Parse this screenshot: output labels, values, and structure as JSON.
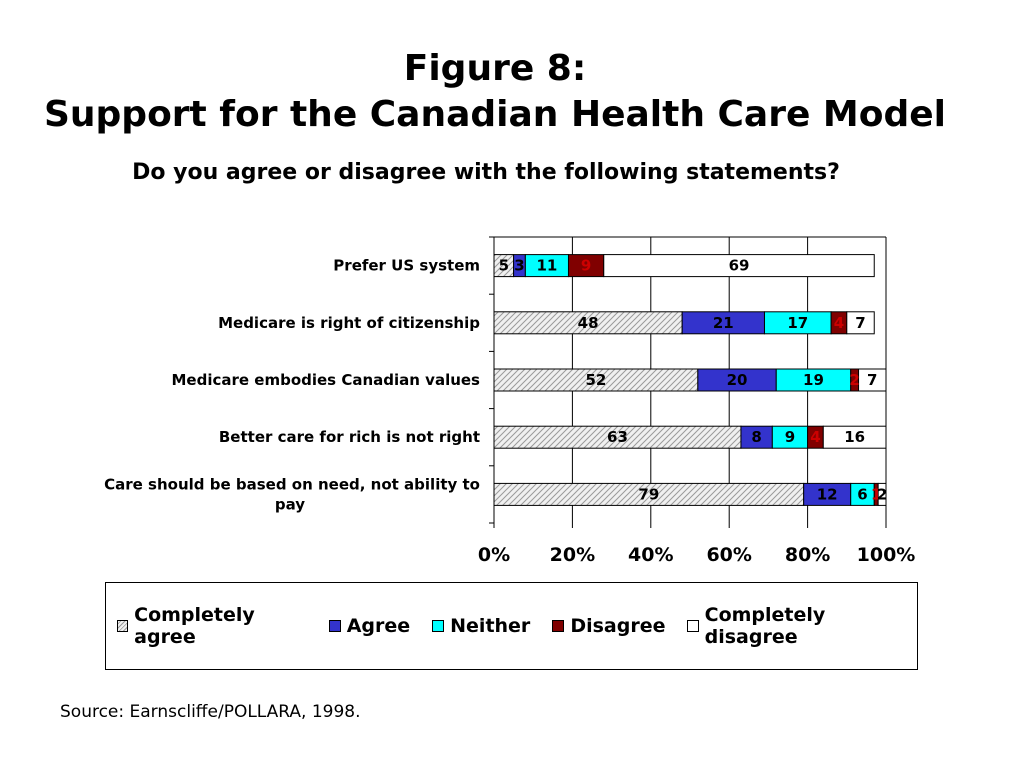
{
  "title": "Figure 8:",
  "title2": "Support for the Canadian Health Care Model",
  "subtitle": "Do you agree or disagree with the following statements?",
  "source": "Source: Earnscliffe/POLLARA, 1998.",
  "colors": {
    "Completely agree": "#e4e4e4",
    "Agree": "#3333cc",
    "Neither": "#00ffff",
    "Disagree": "#800000",
    "Completely disagree": "#ffffff"
  },
  "chart_data": {
    "type": "bar",
    "orientation": "horizontal",
    "stacked": "100%",
    "categories": [
      "Prefer US system",
      "Medicare is right of citizenship",
      "Medicare embodies Canadian values",
      "Better care for rich is not right",
      "Care should be based on need, not ability to pay"
    ],
    "series": [
      {
        "name": "Completely agree",
        "values": [
          5,
          48,
          52,
          63,
          79
        ]
      },
      {
        "name": "Agree",
        "values": [
          3,
          21,
          20,
          8,
          12
        ]
      },
      {
        "name": "Neither",
        "values": [
          11,
          17,
          19,
          9,
          6
        ]
      },
      {
        "name": "Disagree",
        "values": [
          9,
          4,
          2,
          4,
          1
        ]
      },
      {
        "name": "Completely disagree",
        "values": [
          69,
          7,
          7,
          16,
          2
        ]
      }
    ],
    "x_ticks": [
      "0%",
      "20%",
      "40%",
      "60%",
      "80%",
      "100%"
    ],
    "xlim": [
      0,
      100
    ],
    "grid": true,
    "legend": "bottom"
  }
}
